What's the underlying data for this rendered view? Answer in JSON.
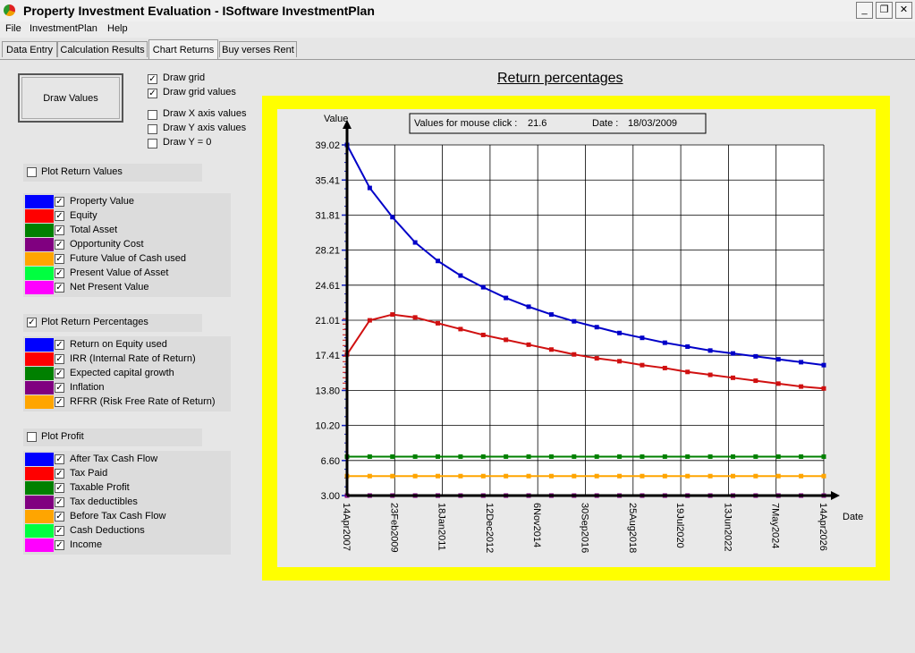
{
  "window": {
    "title": "Property Investment Evaluation - ISoftware InvestmentPlan",
    "minimize_glyph": "_",
    "restore_glyph": "❐",
    "close_glyph": "✕"
  },
  "menu": [
    "File",
    "InvestmentPlan",
    "Help"
  ],
  "tabs": [
    {
      "label": "Data Entry",
      "active": false
    },
    {
      "label": "Calculation Results",
      "active": false
    },
    {
      "label": "Chart Returns",
      "active": true
    },
    {
      "label": "Buy verses Rent",
      "active": false
    }
  ],
  "draw_button": "Draw Values",
  "options": [
    {
      "label": "Draw grid",
      "checked": true
    },
    {
      "label": "Draw grid values",
      "checked": true
    },
    {
      "label": "Draw X axis values",
      "checked": false
    },
    {
      "label": "Draw Y axis values",
      "checked": false
    },
    {
      "label": "Draw Y = 0",
      "checked": false
    }
  ],
  "groups": {
    "return_values": {
      "label": "Plot Return Values",
      "checked": false,
      "items": [
        {
          "label": "Property Value",
          "color": "#0000ff",
          "checked": true
        },
        {
          "label": "Equity",
          "color": "#ff0000",
          "checked": true
        },
        {
          "label": "Total Asset",
          "color": "#008000",
          "checked": true
        },
        {
          "label": "Opportunity Cost",
          "color": "#800080",
          "checked": true
        },
        {
          "label": "Future Value of Cash used",
          "color": "#ffa500",
          "checked": true
        },
        {
          "label": "Present Value of Asset",
          "color": "#00ff40",
          "checked": true
        },
        {
          "label": "Net Present Value",
          "color": "#ff00ff",
          "checked": true
        }
      ]
    },
    "return_percentages": {
      "label": "Plot Return Percentages",
      "checked": true,
      "items": [
        {
          "label": "Return on Equity used",
          "color": "#0000ff",
          "checked": true
        },
        {
          "label": "IRR (Internal Rate of Return)",
          "color": "#ff0000",
          "checked": true
        },
        {
          "label": "Expected capital growth",
          "color": "#008000",
          "checked": true
        },
        {
          "label": "Inflation",
          "color": "#800080",
          "checked": true
        },
        {
          "label": "RFRR (Risk Free Rate of Return)",
          "color": "#ffa500",
          "checked": true
        }
      ]
    },
    "profit": {
      "label": "Plot Profit",
      "checked": false,
      "items": [
        {
          "label": "After Tax Cash Flow",
          "color": "#0000ff",
          "checked": true
        },
        {
          "label": "Tax Paid",
          "color": "#ff0000",
          "checked": true
        },
        {
          "label": "Taxable Profit",
          "color": "#008000",
          "checked": true
        },
        {
          "label": "Tax deductibles",
          "color": "#800080",
          "checked": true
        },
        {
          "label": "Before Tax Cash Flow",
          "color": "#ffa500",
          "checked": true
        },
        {
          "label": "Cash Deductions",
          "color": "#00ff40",
          "checked": true
        },
        {
          "label": "Income",
          "color": "#ff00ff",
          "checked": true
        }
      ]
    }
  },
  "chart_data": {
    "type": "line",
    "title": "Return percentages",
    "ylabel": "Value",
    "xlabel": "Date",
    "mouse_click": {
      "label": "Values for mouse click :",
      "value": "21.6",
      "date_label": "Date :",
      "date": "18/03/2009"
    },
    "y_ticks": [
      "3.00",
      "6.60",
      "10.20",
      "13.80",
      "17.41",
      "21.01",
      "24.61",
      "28.21",
      "31.81",
      "35.41",
      "39.02"
    ],
    "ylim": [
      3.0,
      39.02
    ],
    "x_ticks": [
      "14Apr2007",
      "23Feb2009",
      "18Jan2011",
      "12Dec2012",
      "6Nov2014",
      "30Sep2016",
      "25Aug2018",
      "19Jul2020",
      "13Jun2022",
      "7May2024",
      "14Apr2026"
    ],
    "x_start": "2007-04-14",
    "x_end": "2026-04-14",
    "grid": true,
    "series": [
      {
        "color": "#0000c8",
        "y": [
          39.02,
          34.6,
          31.6,
          29.0,
          27.1,
          25.6,
          24.4,
          23.3,
          22.4,
          21.6,
          20.9,
          20.3,
          19.7,
          19.2,
          18.7,
          18.3,
          17.9,
          17.6,
          17.3,
          17.0,
          16.7,
          16.4
        ]
      },
      {
        "color": "#d01010",
        "y": [
          17.5,
          21.0,
          21.6,
          21.3,
          20.7,
          20.1,
          19.5,
          19.0,
          18.5,
          18.0,
          17.5,
          17.1,
          16.8,
          16.4,
          16.1,
          15.7,
          15.4,
          15.1,
          14.8,
          14.5,
          14.2,
          14.0
        ]
      },
      {
        "color": "#008000",
        "y": [
          7.0,
          7.0,
          7.0,
          7.0,
          7.0,
          7.0,
          7.0,
          7.0,
          7.0,
          7.0,
          7.0,
          7.0,
          7.0,
          7.0,
          7.0,
          7.0,
          7.0,
          7.0,
          7.0,
          7.0,
          7.0,
          7.0
        ]
      },
      {
        "color": "#ffa500",
        "y": [
          5.0,
          5.0,
          5.0,
          5.0,
          5.0,
          5.0,
          5.0,
          5.0,
          5.0,
          5.0,
          5.0,
          5.0,
          5.0,
          5.0,
          5.0,
          5.0,
          5.0,
          5.0,
          5.0,
          5.0,
          5.0,
          5.0
        ]
      },
      {
        "color": "#800080",
        "y": [
          3.0,
          3.0,
          3.0,
          3.0,
          3.0,
          3.0,
          3.0,
          3.0,
          3.0,
          3.0,
          3.0,
          3.0,
          3.0,
          3.0,
          3.0,
          3.0,
          3.0,
          3.0,
          3.0,
          3.0,
          3.0,
          3.0
        ]
      }
    ]
  }
}
